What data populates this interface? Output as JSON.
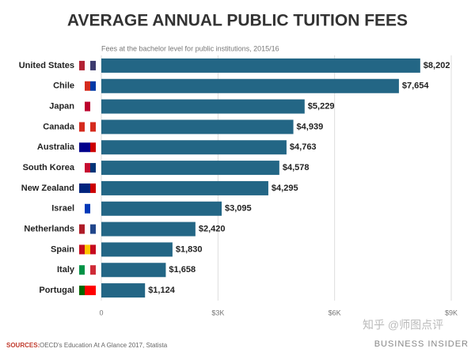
{
  "chart_data": {
    "type": "bar",
    "orientation": "horizontal",
    "title": "AVERAGE ANNUAL PUBLIC TUITION FEES",
    "subtitle": "Fees at the bachelor level for public institutions, 2015/16",
    "categories": [
      "United States",
      "Chile",
      "Japan",
      "Canada",
      "Australia",
      "South Korea",
      "New Zealand",
      "Israel",
      "Netherlands",
      "Spain",
      "Italy",
      "Portugal"
    ],
    "values": [
      8202,
      7654,
      5229,
      4939,
      4763,
      4578,
      4295,
      3095,
      2420,
      1830,
      1658,
      1124
    ],
    "value_labels": [
      "$8,202",
      "$7,654",
      "$5,229",
      "$4,939",
      "$4,763",
      "$4,578",
      "$4,295",
      "$3,095",
      "$2,420",
      "$1,830",
      "$1,658",
      "$1,124"
    ],
    "color": "#236685",
    "xlim": [
      0,
      9000
    ],
    "xticks": [
      0,
      {
        "value": 3000,
        "label": "$3K"
      },
      {
        "value": 6000,
        "label": "$6K"
      },
      {
        "value": 9000,
        "label": "$9K"
      }
    ],
    "grid": true,
    "source_label": "SOURCES:",
    "source": "OECD's Education At A Glance 2017, Statista",
    "brand": "BUSINESS INSIDER",
    "watermark": "知乎 @师图点评"
  }
}
